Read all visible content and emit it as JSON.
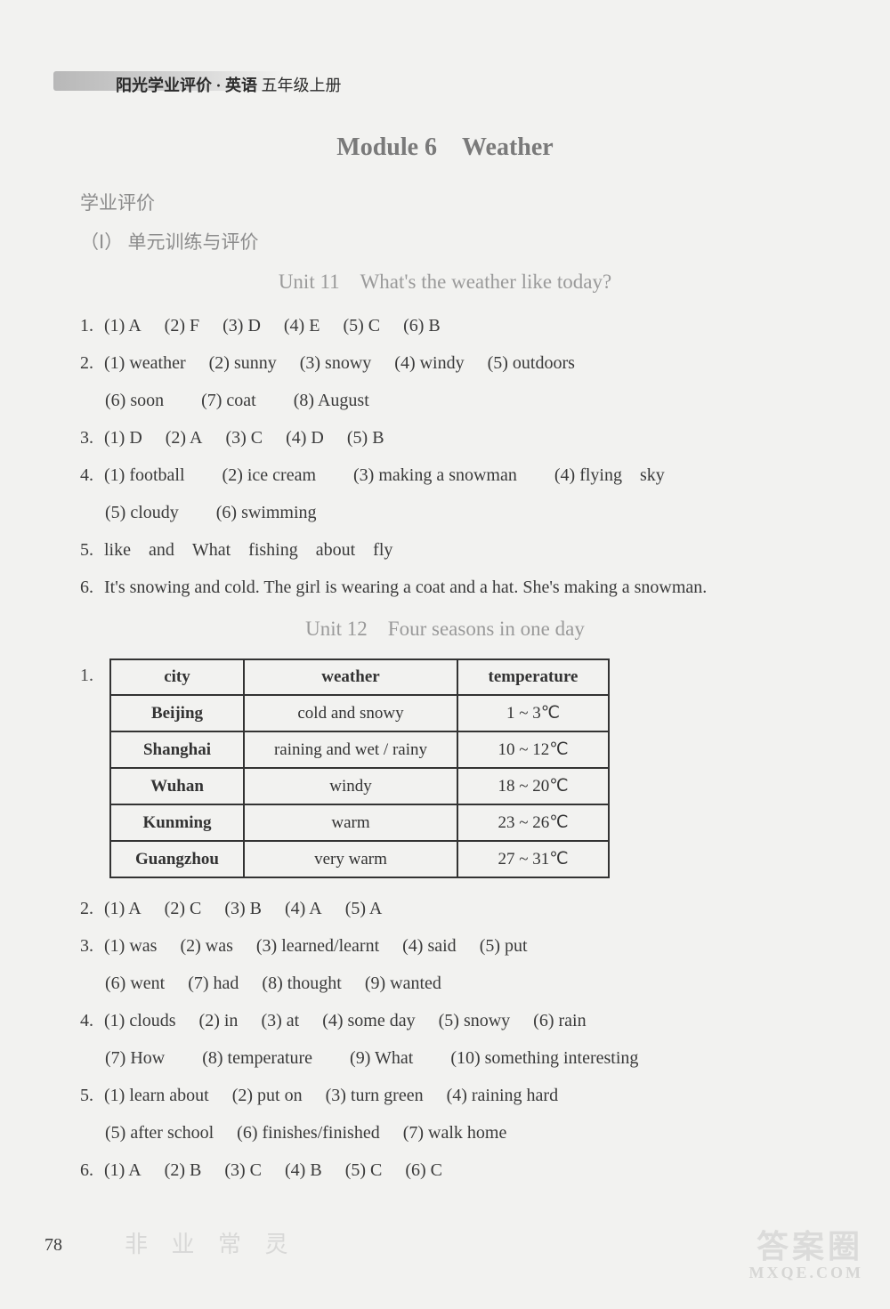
{
  "header": {
    "series": "阳光学业评价 · 英语",
    "grade": "五年级上册"
  },
  "module_title": "Module 6 Weather",
  "section_label_1": "学业评价",
  "section_label_2": "（Ⅰ） 单元训练与评价",
  "unit11": {
    "title": "Unit 11 What's the weather like today?",
    "q1": [
      {
        "n": "(1)",
        "a": "A"
      },
      {
        "n": "(2)",
        "a": "F"
      },
      {
        "n": "(3)",
        "a": "D"
      },
      {
        "n": "(4)",
        "a": "E"
      },
      {
        "n": "(5)",
        "a": "C"
      },
      {
        "n": "(6)",
        "a": "B"
      }
    ],
    "q2_row1": [
      {
        "n": "(1)",
        "a": "weather"
      },
      {
        "n": "(2)",
        "a": "sunny"
      },
      {
        "n": "(3)",
        "a": "snowy"
      },
      {
        "n": "(4)",
        "a": "windy"
      },
      {
        "n": "(5)",
        "a": "outdoors"
      }
    ],
    "q2_row2": [
      {
        "n": "(6)",
        "a": "soon"
      },
      {
        "n": "(7)",
        "a": "coat"
      },
      {
        "n": "(8)",
        "a": "August"
      }
    ],
    "q3": [
      {
        "n": "(1)",
        "a": "D"
      },
      {
        "n": "(2)",
        "a": "A"
      },
      {
        "n": "(3)",
        "a": "C"
      },
      {
        "n": "(4)",
        "a": "D"
      },
      {
        "n": "(5)",
        "a": "B"
      }
    ],
    "q4_row1": [
      {
        "n": "(1)",
        "a": "football"
      },
      {
        "n": "(2)",
        "a": "ice cream"
      },
      {
        "n": "(3)",
        "a": "making a snowman"
      },
      {
        "n": "(4)",
        "a": "flying sky"
      }
    ],
    "q4_row2": [
      {
        "n": "(5)",
        "a": "cloudy"
      },
      {
        "n": "(6)",
        "a": "swimming"
      }
    ],
    "q5": "like and What fishing about fly",
    "q6": "It's snowing and cold. The girl is wearing a coat and a hat. She's making a snowman."
  },
  "unit12": {
    "title": "Unit 12 Four seasons in one day",
    "table": {
      "headers": [
        "city",
        "weather",
        "temperature"
      ],
      "rows": [
        [
          "Beijing",
          "cold and snowy",
          "1 ~ 3℃"
        ],
        [
          "Shanghai",
          "raining and wet / rainy",
          "10 ~ 12℃"
        ],
        [
          "Wuhan",
          "windy",
          "18 ~ 20℃"
        ],
        [
          "Kunming",
          "warm",
          "23 ~ 26℃"
        ],
        [
          "Guangzhou",
          "very warm",
          "27 ~ 31℃"
        ]
      ],
      "col_widths": [
        "150px",
        "240px",
        "170px"
      ]
    },
    "q2": [
      {
        "n": "(1)",
        "a": "A"
      },
      {
        "n": "(2)",
        "a": "C"
      },
      {
        "n": "(3)",
        "a": "B"
      },
      {
        "n": "(4)",
        "a": "A"
      },
      {
        "n": "(5)",
        "a": "A"
      }
    ],
    "q3_row1": [
      {
        "n": "(1)",
        "a": "was"
      },
      {
        "n": "(2)",
        "a": "was"
      },
      {
        "n": "(3)",
        "a": "learned/learnt"
      },
      {
        "n": "(4)",
        "a": "said"
      },
      {
        "n": "(5)",
        "a": "put"
      }
    ],
    "q3_row2": [
      {
        "n": "(6)",
        "a": "went"
      },
      {
        "n": "(7)",
        "a": "had"
      },
      {
        "n": "(8)",
        "a": "thought"
      },
      {
        "n": "(9)",
        "a": "wanted"
      }
    ],
    "q4_row1": [
      {
        "n": "(1)",
        "a": "clouds"
      },
      {
        "n": "(2)",
        "a": "in"
      },
      {
        "n": "(3)",
        "a": "at"
      },
      {
        "n": "(4)",
        "a": "some day"
      },
      {
        "n": "(5)",
        "a": "snowy"
      },
      {
        "n": "(6)",
        "a": "rain"
      }
    ],
    "q4_row2": [
      {
        "n": "(7)",
        "a": "How"
      },
      {
        "n": "(8)",
        "a": "temperature"
      },
      {
        "n": "(9)",
        "a": "What"
      },
      {
        "n": "(10)",
        "a": "something interesting"
      }
    ],
    "q5_row1": [
      {
        "n": "(1)",
        "a": "learn about"
      },
      {
        "n": "(2)",
        "a": "put on"
      },
      {
        "n": "(3)",
        "a": "turn green"
      },
      {
        "n": "(4)",
        "a": "raining hard"
      }
    ],
    "q5_row2": [
      {
        "n": "(5)",
        "a": "after school"
      },
      {
        "n": "(6)",
        "a": "finishes/finished"
      },
      {
        "n": "(7)",
        "a": "walk home"
      }
    ],
    "q6": [
      {
        "n": "(1)",
        "a": "A"
      },
      {
        "n": "(2)",
        "a": "B"
      },
      {
        "n": "(3)",
        "a": "C"
      },
      {
        "n": "(4)",
        "a": "B"
      },
      {
        "n": "(5)",
        "a": "C"
      },
      {
        "n": "(6)",
        "a": "C"
      }
    ]
  },
  "page_number": "78",
  "watermark": {
    "big": "答案圈",
    "url": "MXQE.COM",
    "left": "非 业 常 灵"
  }
}
